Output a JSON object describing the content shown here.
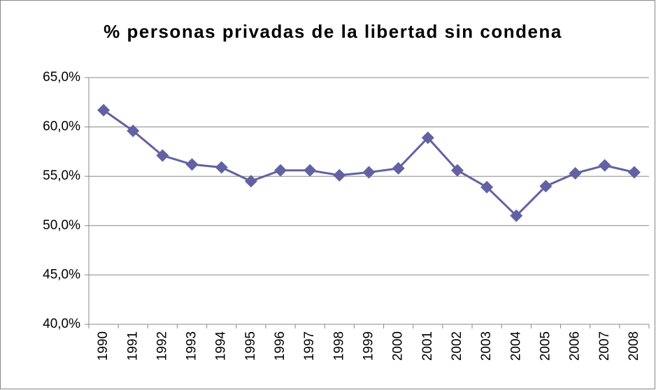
{
  "chart_data": {
    "type": "line",
    "title": "% personas privadas de la libertad sin condena",
    "categories": [
      "1990",
      "1991",
      "1992",
      "1993",
      "1994",
      "1995",
      "1996",
      "1997",
      "1998",
      "1999",
      "2000",
      "2001",
      "2002",
      "2003",
      "2004",
      "2005",
      "2006",
      "2007",
      "2008"
    ],
    "series": [
      {
        "name": "% personas privadas de la libertad sin condena",
        "color": "#6262a2",
        "values": [
          61.7,
          59.6,
          57.1,
          56.2,
          55.9,
          54.5,
          55.6,
          55.6,
          55.1,
          55.4,
          55.8,
          58.9,
          55.6,
          53.9,
          51.0,
          54.0,
          55.3,
          56.1,
          55.4
        ]
      }
    ],
    "ylim": [
      40,
      65
    ],
    "yticks": [
      {
        "value": 40,
        "label": "40,0%"
      },
      {
        "value": 45,
        "label": "45,0%"
      },
      {
        "value": 50,
        "label": "50,0%"
      },
      {
        "value": 55,
        "label": "55,0%"
      },
      {
        "value": 60,
        "label": "60,0%"
      },
      {
        "value": 65,
        "label": "65,0%"
      }
    ],
    "grid": true
  }
}
